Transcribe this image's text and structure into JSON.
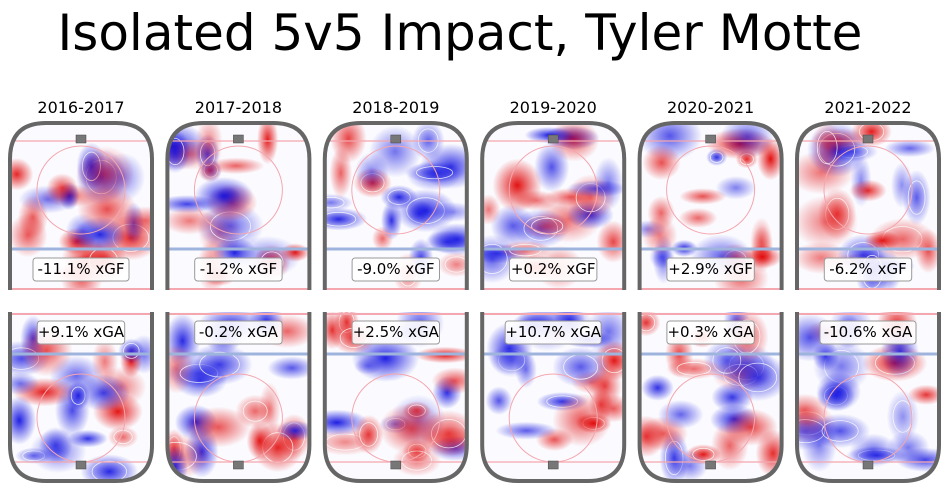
{
  "title": "Isolated 5v5 Impact, Tyler Motte",
  "chart_data": {
    "type": "heatmap",
    "title": "Isolated 5v5 Impact, Tyler Motte",
    "seasons": [
      "2016-2017",
      "2017-2018",
      "2018-2019",
      "2019-2020",
      "2020-2021",
      "2021-2022"
    ],
    "xgf_labels": [
      "-11.1% xGF",
      "-1.2% xGF",
      "-9.0% xGF",
      "+0.2% xGF",
      "+2.9% xGF",
      "-6.2% xGF"
    ],
    "xga_labels": [
      "+9.1% xGA",
      "-0.2% xGA",
      "+2.5% xGA",
      "+10.7% xGA",
      "+0.3% xGA",
      "-10.6% xGA"
    ],
    "xgf_values": [
      -11.1,
      -1.2,
      -9.0,
      0.2,
      2.9,
      -6.2
    ],
    "xga_values": [
      9.1,
      -0.2,
      2.5,
      10.7,
      0.3,
      -10.6
    ],
    "colors": {
      "positive": "#e00000",
      "negative": "#1010e0",
      "rink": "#666666",
      "blue_line": "#9fb4dd",
      "red_line": "#f4a7ae"
    }
  }
}
